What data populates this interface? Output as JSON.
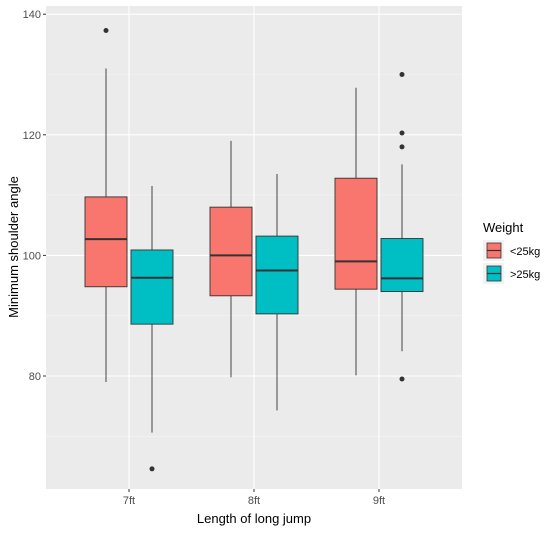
{
  "chart_data": {
    "type": "box",
    "title": "",
    "xlabel": "Length of long jump",
    "ylabel": "Minimum shoulder angle",
    "categories": [
      "7ft",
      "8ft",
      "9ft"
    ],
    "ylim": [
      60,
      140
    ],
    "yticks": [
      80,
      100,
      120,
      140
    ],
    "legend": {
      "title": "Weight",
      "position": "right"
    },
    "series": [
      {
        "name": "<25kg",
        "color": "#F8766D",
        "boxes": [
          {
            "category": "7ft",
            "whisker_low": 79,
            "q1": 94.8,
            "median": 102.7,
            "q3": 109.7,
            "whisker_high": 131,
            "outliers": [
              137.3
            ]
          },
          {
            "category": "8ft",
            "whisker_low": 79.8,
            "q1": 93.3,
            "median": 100,
            "q3": 108,
            "whisker_high": 119,
            "outliers": []
          },
          {
            "category": "9ft",
            "whisker_low": 80.1,
            "q1": 94.4,
            "median": 99,
            "q3": 112.8,
            "whisker_high": 127.8,
            "outliers": []
          }
        ]
      },
      {
        "name": ">25kg",
        "color": "#00BFC4",
        "boxes": [
          {
            "category": "7ft",
            "whisker_low": 70.6,
            "q1": 88.6,
            "median": 96.3,
            "q3": 100.9,
            "whisker_high": 111.5,
            "outliers": [
              64.6
            ]
          },
          {
            "category": "8ft",
            "whisker_low": 74.3,
            "q1": 90.3,
            "median": 97.5,
            "q3": 103.2,
            "whisker_high": 113.5,
            "outliers": []
          },
          {
            "category": "9ft",
            "whisker_low": 84.1,
            "q1": 94,
            "median": 96.2,
            "q3": 102.8,
            "whisker_high": 115.1,
            "outliers": [
              79.5,
              118,
              120.3,
              130
            ]
          }
        ]
      }
    ],
    "grid": true,
    "panel_background": "#EBEBEB"
  }
}
